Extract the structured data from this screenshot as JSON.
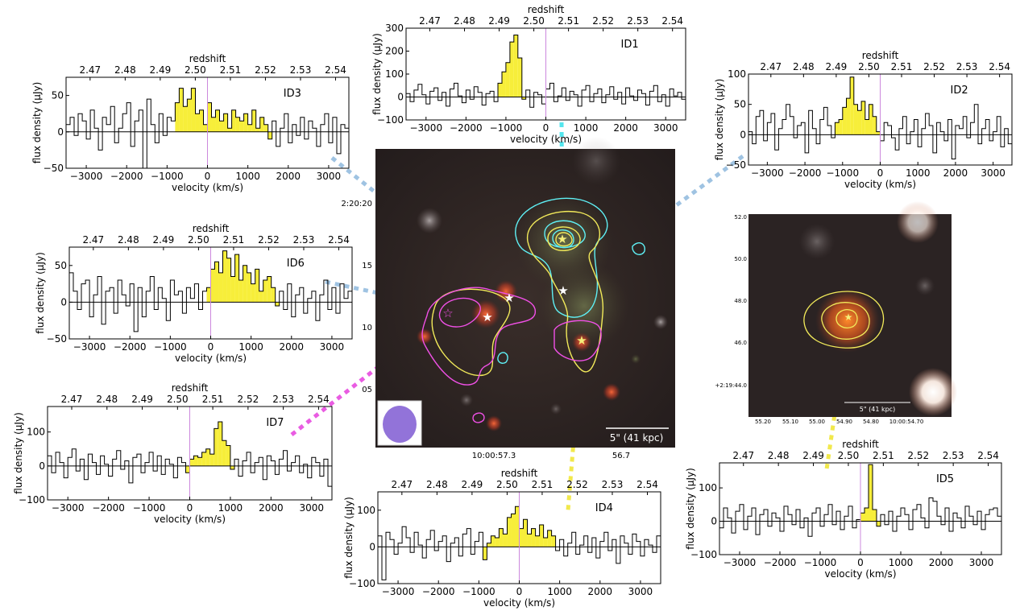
{
  "spectrum_axes": {
    "top_label": "redshift",
    "bottom_label": "velocity (km/s)",
    "y_label": "flux density (μJy)",
    "x_ticks": [
      -3000,
      -2000,
      -1000,
      0,
      1000,
      2000,
      3000
    ],
    "redshift_ticks": [
      "2.47",
      "2.48",
      "2.49",
      "2.50",
      "2.51",
      "2.52",
      "2.53",
      "2.54"
    ]
  },
  "chart_data": [
    {
      "type": "bar",
      "label": "ID1",
      "xlim": [
        -3500,
        3500
      ],
      "ylim": [
        -100,
        300
      ],
      "yticks": [
        -100,
        0,
        100,
        200,
        300
      ],
      "highlight": [
        -1150,
        -550
      ],
      "bin_width_kms": 100,
      "x": [
        -3450,
        -3350,
        -3250,
        -3150,
        -3050,
        -2950,
        -2850,
        -2750,
        -2650,
        -2550,
        -2450,
        -2350,
        -2250,
        -2150,
        -2050,
        -1950,
        -1850,
        -1750,
        -1650,
        -1550,
        -1450,
        -1350,
        -1250,
        -1150,
        -1050,
        -950,
        -850,
        -750,
        -650,
        -550,
        -450,
        -350,
        -250,
        -150,
        -50,
        50,
        150,
        250,
        350,
        450,
        550,
        650,
        750,
        850,
        950,
        1050,
        1150,
        1250,
        1350,
        1450,
        1550,
        1650,
        1750,
        1850,
        1950,
        2050,
        2150,
        2250,
        2350,
        2450,
        2550,
        2650,
        2750,
        2850,
        2950,
        3050,
        3150,
        3250,
        3350,
        3450
      ],
      "values": [
        15,
        -20,
        30,
        55,
        10,
        -30,
        25,
        40,
        -15,
        20,
        -40,
        35,
        60,
        5,
        -25,
        30,
        -10,
        45,
        20,
        -35,
        15,
        25,
        -20,
        60,
        110,
        150,
        240,
        270,
        170,
        -10,
        30,
        -45,
        20,
        10,
        -30,
        35,
        60,
        -20,
        5,
        40,
        -15,
        25,
        10,
        -40,
        30,
        50,
        -20,
        15,
        35,
        -25,
        10,
        45,
        -10,
        20,
        -30,
        40,
        5,
        -15,
        30,
        15,
        -35,
        25,
        50,
        -20,
        10,
        -40,
        35,
        5,
        20,
        -10
      ]
    },
    {
      "type": "bar",
      "label": "ID2",
      "xlim": [
        -3500,
        3500
      ],
      "ylim": [
        -50,
        100
      ],
      "yticks": [
        -50,
        0,
        50,
        100
      ],
      "highlight": [
        -1150,
        -50
      ],
      "bin_width_kms": 100,
      "x": [
        -3450,
        -3350,
        -3250,
        -3150,
        -3050,
        -2950,
        -2850,
        -2750,
        -2650,
        -2550,
        -2450,
        -2350,
        -2250,
        -2150,
        -2050,
        -1950,
        -1850,
        -1750,
        -1650,
        -1550,
        -1450,
        -1350,
        -1250,
        -1150,
        -1050,
        -950,
        -850,
        -750,
        -650,
        -550,
        -450,
        -350,
        -250,
        -150,
        -50,
        50,
        150,
        250,
        350,
        450,
        550,
        650,
        750,
        850,
        950,
        1050,
        1150,
        1250,
        1350,
        1450,
        1550,
        1650,
        1750,
        1850,
        1950,
        2050,
        2150,
        2250,
        2350,
        2450,
        2550,
        2650,
        2750,
        2850,
        2950,
        3050,
        3150,
        3250,
        3350,
        3450
      ],
      "values": [
        5,
        -15,
        30,
        40,
        -10,
        20,
        35,
        -25,
        10,
        25,
        50,
        30,
        -5,
        15,
        20,
        -30,
        40,
        10,
        -15,
        25,
        45,
        15,
        -5,
        20,
        25,
        45,
        60,
        95,
        50,
        40,
        55,
        25,
        50,
        30,
        5,
        -10,
        20,
        15,
        -5,
        -25,
        10,
        30,
        -15,
        5,
        25,
        -20,
        10,
        35,
        15,
        -30,
        20,
        5,
        -10,
        25,
        -40,
        15,
        10,
        30,
        -5,
        20,
        50,
        -15,
        10,
        25,
        -10,
        5,
        30,
        -20,
        10,
        -15
      ]
    },
    {
      "type": "bar",
      "label": "ID3",
      "xlim": [
        -3500,
        3500
      ],
      "ylim": [
        -50,
        75
      ],
      "yticks": [
        -50,
        0,
        50
      ],
      "highlight": [
        -750,
        1550
      ],
      "bin_width_kms": 100,
      "x": [
        -3450,
        -3350,
        -3250,
        -3150,
        -3050,
        -2950,
        -2850,
        -2750,
        -2650,
        -2550,
        -2450,
        -2350,
        -2250,
        -2150,
        -2050,
        -1950,
        -1850,
        -1750,
        -1650,
        -1550,
        -1450,
        -1350,
        -1250,
        -1150,
        -1050,
        -950,
        -850,
        -750,
        -650,
        -550,
        -450,
        -350,
        -250,
        -150,
        -50,
        50,
        150,
        250,
        350,
        450,
        550,
        650,
        750,
        850,
        950,
        1050,
        1150,
        1250,
        1350,
        1450,
        1550,
        1650,
        1750,
        1850,
        1950,
        2050,
        2150,
        2250,
        2350,
        2450,
        2550,
        2650,
        2750,
        2850,
        2950,
        3050,
        3150,
        3250,
        3350,
        3450
      ],
      "values": [
        10,
        20,
        -5,
        25,
        15,
        -10,
        30,
        5,
        -25,
        20,
        10,
        35,
        -15,
        5,
        25,
        40,
        -20,
        15,
        30,
        -50,
        45,
        10,
        -15,
        25,
        -5,
        20,
        15,
        40,
        60,
        35,
        45,
        60,
        25,
        30,
        10,
        40,
        20,
        30,
        15,
        25,
        5,
        30,
        20,
        15,
        25,
        10,
        30,
        5,
        20,
        10,
        -10,
        15,
        -20,
        5,
        25,
        -15,
        10,
        -5,
        20,
        -10,
        15,
        5,
        -20,
        10,
        25,
        -15,
        20,
        -30,
        10,
        5
      ]
    },
    {
      "type": "bar",
      "label": "ID4",
      "xlim": [
        -3500,
        3500
      ],
      "ylim": [
        -100,
        150
      ],
      "yticks": [
        -100,
        0,
        100
      ],
      "highlight": [
        -850,
        850
      ],
      "bin_width_kms": 100,
      "x": [
        -3450,
        -3350,
        -3250,
        -3150,
        -3050,
        -2950,
        -2850,
        -2750,
        -2650,
        -2550,
        -2450,
        -2350,
        -2250,
        -2150,
        -2050,
        -1950,
        -1850,
        -1750,
        -1650,
        -1550,
        -1450,
        -1350,
        -1250,
        -1150,
        -1050,
        -950,
        -850,
        -750,
        -650,
        -550,
        -450,
        -350,
        -250,
        -150,
        -50,
        50,
        150,
        250,
        350,
        450,
        550,
        650,
        750,
        850,
        950,
        1050,
        1150,
        1250,
        1350,
        1450,
        1550,
        1650,
        1750,
        1850,
        1950,
        2050,
        2150,
        2250,
        2350,
        2450,
        2550,
        2650,
        2750,
        2850,
        2950,
        3050,
        3150,
        3250,
        3350,
        3450
      ],
      "values": [
        30,
        -90,
        40,
        20,
        -20,
        10,
        55,
        25,
        -15,
        40,
        5,
        -30,
        20,
        45,
        -10,
        15,
        30,
        -40,
        10,
        25,
        -25,
        35,
        50,
        -20,
        15,
        40,
        -35,
        10,
        30,
        25,
        50,
        35,
        80,
        90,
        110,
        50,
        75,
        35,
        50,
        30,
        60,
        25,
        45,
        30,
        -10,
        20,
        -25,
        10,
        40,
        -20,
        5,
        30,
        -15,
        25,
        -30,
        15,
        40,
        -10,
        20,
        -45,
        30,
        10,
        -20,
        35,
        15,
        -25,
        20,
        5,
        -15,
        30
      ]
    },
    {
      "type": "bar",
      "label": "ID5",
      "xlim": [
        -3500,
        3500
      ],
      "ylim": [
        -100,
        175
      ],
      "yticks": [
        -100,
        0,
        100
      ],
      "highlight": [
        50,
        450
      ],
      "bin_width_kms": 100,
      "x": [
        -3450,
        -3350,
        -3250,
        -3150,
        -3050,
        -2950,
        -2850,
        -2750,
        -2650,
        -2550,
        -2450,
        -2350,
        -2250,
        -2150,
        -2050,
        -1950,
        -1850,
        -1750,
        -1650,
        -1550,
        -1450,
        -1350,
        -1250,
        -1150,
        -1050,
        -950,
        -850,
        -750,
        -650,
        -550,
        -450,
        -350,
        -250,
        -150,
        -50,
        50,
        150,
        250,
        350,
        450,
        550,
        650,
        750,
        850,
        950,
        1050,
        1150,
        1250,
        1350,
        1450,
        1550,
        1650,
        1750,
        1850,
        1950,
        2050,
        2150,
        2250,
        2350,
        2450,
        2550,
        2650,
        2750,
        2850,
        2950,
        3050,
        3150,
        3250,
        3350,
        3450
      ],
      "values": [
        -20,
        40,
        10,
        -35,
        30,
        50,
        -25,
        15,
        40,
        -40,
        20,
        35,
        -15,
        25,
        10,
        -30,
        45,
        20,
        -10,
        35,
        -20,
        10,
        -45,
        25,
        40,
        -15,
        20,
        50,
        -10,
        30,
        -25,
        15,
        45,
        -20,
        5,
        25,
        40,
        170,
        35,
        -15,
        20,
        -10,
        30,
        -30,
        15,
        40,
        20,
        -25,
        35,
        50,
        10,
        -20,
        70,
        60,
        15,
        -10,
        40,
        -30,
        25,
        10,
        -20,
        45,
        15,
        -10,
        30,
        -25,
        20,
        35,
        40,
        15
      ]
    },
    {
      "type": "bar",
      "label": "ID6",
      "xlim": [
        -3500,
        3500
      ],
      "ylim": [
        -50,
        75
      ],
      "yticks": [
        -50,
        0,
        50
      ],
      "highlight": [
        -50,
        1650
      ],
      "bin_width_kms": 100,
      "x": [
        -3450,
        -3350,
        -3250,
        -3150,
        -3050,
        -2950,
        -2850,
        -2750,
        -2650,
        -2550,
        -2450,
        -2350,
        -2250,
        -2150,
        -2050,
        -1950,
        -1850,
        -1750,
        -1650,
        -1550,
        -1450,
        -1350,
        -1250,
        -1150,
        -1050,
        -950,
        -850,
        -750,
        -650,
        -550,
        -450,
        -350,
        -250,
        -150,
        -50,
        50,
        150,
        250,
        350,
        450,
        550,
        650,
        750,
        850,
        950,
        1050,
        1150,
        1250,
        1350,
        1450,
        1550,
        1650,
        1750,
        1850,
        1950,
        2050,
        2150,
        2250,
        2350,
        2450,
        2550,
        2650,
        2750,
        2850,
        2950,
        3050,
        3150,
        3250,
        3350,
        3450
      ],
      "values": [
        40,
        15,
        -10,
        25,
        30,
        -20,
        10,
        35,
        -30,
        15,
        20,
        -15,
        30,
        10,
        -5,
        25,
        -40,
        20,
        -20,
        15,
        35,
        -10,
        20,
        5,
        -25,
        30,
        10,
        15,
        -15,
        20,
        5,
        25,
        -10,
        15,
        20,
        45,
        55,
        40,
        70,
        60,
        35,
        65,
        30,
        50,
        40,
        25,
        45,
        15,
        30,
        35,
        20,
        -5,
        15,
        -10,
        25,
        -20,
        10,
        20,
        -15,
        5,
        15,
        -25,
        10,
        30,
        -10,
        20,
        -15,
        25,
        5,
        15
      ]
    },
    {
      "type": "bar",
      "label": "ID7",
      "xlim": [
        -3500,
        3500
      ],
      "ylim": [
        -100,
        175
      ],
      "yticks": [
        -100,
        0,
        100
      ],
      "highlight": [
        -50,
        1050
      ],
      "bin_width_kms": 100,
      "x": [
        -3450,
        -3350,
        -3250,
        -3150,
        -3050,
        -2950,
        -2850,
        -2750,
        -2650,
        -2550,
        -2450,
        -2350,
        -2250,
        -2150,
        -2050,
        -1950,
        -1850,
        -1750,
        -1650,
        -1550,
        -1450,
        -1350,
        -1250,
        -1150,
        -1050,
        -950,
        -850,
        -750,
        -650,
        -550,
        -450,
        -350,
        -250,
        -150,
        -50,
        50,
        150,
        250,
        350,
        450,
        550,
        650,
        750,
        850,
        950,
        1050,
        1150,
        1250,
        1350,
        1450,
        1550,
        1650,
        1750,
        1850,
        1950,
        2050,
        2150,
        2250,
        2350,
        2450,
        2550,
        2650,
        2750,
        2850,
        2950,
        3050,
        3150,
        3250,
        3350,
        3450
      ],
      "values": [
        30,
        -20,
        40,
        10,
        -35,
        25,
        50,
        -15,
        20,
        -40,
        35,
        10,
        -25,
        30,
        5,
        -30,
        20,
        45,
        -10,
        15,
        -50,
        25,
        35,
        -20,
        10,
        40,
        -15,
        30,
        -25,
        20,
        5,
        -35,
        25,
        10,
        -20,
        20,
        30,
        25,
        40,
        50,
        35,
        110,
        130,
        75,
        60,
        -10,
        20,
        -30,
        15,
        40,
        -20,
        10,
        25,
        -40,
        30,
        15,
        -25,
        20,
        45,
        -15,
        10,
        30,
        -20,
        5,
        -35,
        25,
        10,
        -30,
        20,
        -60
      ]
    }
  ],
  "image_main": {
    "dec_ticks": [
      "2:20:20",
      "15",
      "10",
      "05"
    ],
    "ra_ticks": [
      "10:00:57.3",
      "56.7"
    ],
    "scalebar": "5\" (41 kpc)"
  },
  "image_inset": {
    "y_ticks": [
      "52.0",
      "50.0",
      "48.0",
      "46.0",
      "+2:19:44.0"
    ],
    "x_ticks": [
      "55.20",
      "55.10",
      "55.00",
      "54.90",
      "54.80",
      "10:00:54.70"
    ],
    "scalebar": "5\" (41 kpc)"
  },
  "colors": {
    "highlight_fill": "#f7ee3a",
    "zero_line": "#cc88dd",
    "connector_blue": "#9fc3e2",
    "connector_cyan": "#55e6ee",
    "connector_magenta": "#e95ce2",
    "connector_yellow": "#f1e84c",
    "contour_cyan": "#5ff0f5",
    "contour_yellow": "#f2ea5a",
    "contour_magenta": "#f050e6",
    "beam": "#9273d9"
  }
}
